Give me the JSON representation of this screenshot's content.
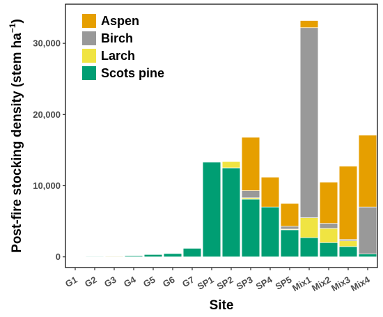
{
  "chart_data": {
    "type": "bar",
    "stacked": true,
    "categories": [
      "G1",
      "G2",
      "G3",
      "G4",
      "G5",
      "G6",
      "G7",
      "SP1",
      "SP2",
      "SP3",
      "SP4",
      "SP5",
      "Mix1",
      "Mix2",
      "Mix3",
      "Mix4"
    ],
    "series": [
      {
        "name": "Scots pine",
        "color": "#009E73",
        "values": [
          0,
          50,
          50,
          150,
          330,
          460,
          1200,
          13300,
          12500,
          8100,
          7000,
          3800,
          2700,
          2000,
          1450,
          400
        ]
      },
      {
        "name": "Larch",
        "color": "#F0E442",
        "values": [
          0,
          0,
          0,
          0,
          0,
          0,
          0,
          0,
          900,
          200,
          0,
          100,
          2800,
          2000,
          800,
          0
        ]
      },
      {
        "name": "Birch",
        "color": "#999999",
        "values": [
          0,
          0,
          0,
          0,
          0,
          0,
          0,
          0,
          0,
          1000,
          0,
          400,
          26700,
          700,
          200,
          6600
        ]
      },
      {
        "name": "Aspen",
        "color": "#E69F00",
        "values": [
          0,
          0,
          50,
          0,
          0,
          0,
          0,
          0,
          0,
          7500,
          4200,
          3200,
          1000,
          5800,
          10300,
          10100
        ]
      }
    ],
    "legend_order": [
      "Aspen",
      "Birch",
      "Larch",
      "Scots pine"
    ],
    "legend_placement": "top-left",
    "xlabel": "Site",
    "ylabel": "Post-fire stocking density (stem ha",
    "ylabel_unit_power": "−1",
    "ylabel_close": ")",
    "ylim": [
      -1500,
      35500
    ],
    "yticks": [
      0,
      10000,
      20000,
      30000
    ],
    "ytick_labels": [
      "0",
      "10,000",
      "20,000",
      "30,000"
    ],
    "grid": false
  }
}
